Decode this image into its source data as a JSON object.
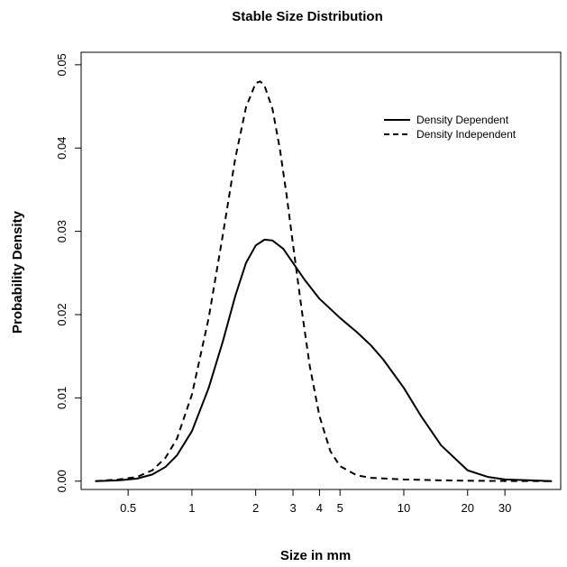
{
  "chart_data": {
    "type": "line",
    "title": "Stable Size Distribution",
    "xlabel": "Size in mm",
    "ylabel": "Probability Density",
    "xscale": "log",
    "xlim": [
      0.3,
      55
    ],
    "ylim": [
      -0.001,
      0.0515
    ],
    "xticks": [
      {
        "value": 0.5,
        "label": "0.5"
      },
      {
        "value": 1,
        "label": "1"
      },
      {
        "value": 2,
        "label": "2"
      },
      {
        "value": 3,
        "label": "3"
      },
      {
        "value": 4,
        "label": "4"
      },
      {
        "value": 5,
        "label": "5"
      },
      {
        "value": 10,
        "label": "10"
      },
      {
        "value": 20,
        "label": "20"
      },
      {
        "value": 30,
        "label": "30"
      }
    ],
    "yticks": [
      {
        "value": 0.0,
        "label": "0.00"
      },
      {
        "value": 0.01,
        "label": "0.01"
      },
      {
        "value": 0.02,
        "label": "0.02"
      },
      {
        "value": 0.03,
        "label": "0.03"
      },
      {
        "value": 0.04,
        "label": "0.04"
      },
      {
        "value": 0.05,
        "label": "0.05"
      }
    ],
    "legend_position": "top-right",
    "grid": false,
    "series": [
      {
        "name": "Density Dependent",
        "line_style": "solid",
        "color": "#000000",
        "x": [
          0.35,
          0.45,
          0.55,
          0.65,
          0.75,
          0.85,
          1.0,
          1.2,
          1.4,
          1.6,
          1.8,
          2.0,
          2.2,
          2.4,
          2.7,
          3.0,
          3.4,
          4.0,
          5.0,
          6.0,
          7.0,
          8.0,
          10.0,
          12.0,
          15.0,
          20.0,
          25.0,
          30.0,
          40.0,
          50.0
        ],
        "y": [
          0.0,
          0.0001,
          0.0003,
          0.0008,
          0.0017,
          0.0031,
          0.006,
          0.0112,
          0.0168,
          0.0222,
          0.0262,
          0.0283,
          0.029,
          0.0289,
          0.0279,
          0.0262,
          0.0242,
          0.0219,
          0.0196,
          0.0179,
          0.0163,
          0.0146,
          0.0112,
          0.0079,
          0.0043,
          0.0013,
          0.0005,
          0.0002,
          0.0001,
          0.0
        ]
      },
      {
        "name": "Density Independent",
        "line_style": "dashed",
        "color": "#000000",
        "x": [
          0.35,
          0.45,
          0.55,
          0.65,
          0.75,
          0.85,
          1.0,
          1.2,
          1.4,
          1.6,
          1.8,
          2.0,
          2.1,
          2.2,
          2.4,
          2.6,
          2.8,
          3.0,
          3.3,
          3.6,
          4.0,
          4.5,
          5.0,
          6.0,
          7.0,
          10.0,
          15.0,
          20.0,
          30.0,
          50.0
        ],
        "y": [
          0.0,
          0.0002,
          0.0005,
          0.0013,
          0.0028,
          0.0051,
          0.0104,
          0.0196,
          0.0296,
          0.0387,
          0.0449,
          0.0478,
          0.048,
          0.0475,
          0.0447,
          0.0399,
          0.0343,
          0.0284,
          0.0205,
          0.0138,
          0.0078,
          0.0036,
          0.0018,
          0.0007,
          0.0004,
          0.0002,
          0.0001,
          5e-05,
          2e-05,
          0.0
        ]
      }
    ]
  }
}
